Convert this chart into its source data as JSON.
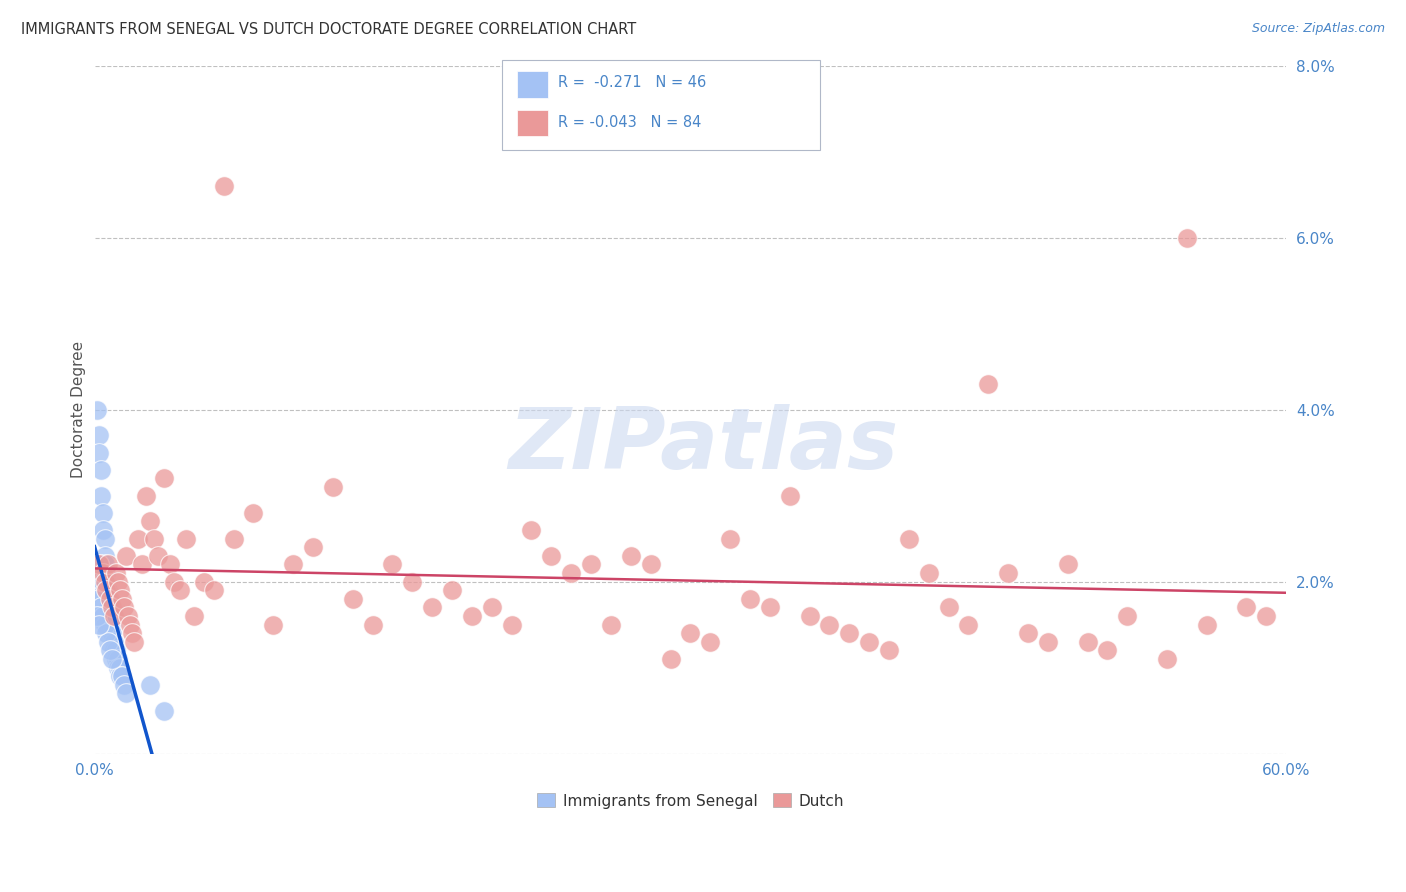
{
  "title": "IMMIGRANTS FROM SENEGAL VS DUTCH DOCTORATE DEGREE CORRELATION CHART",
  "source": "Source: ZipAtlas.com",
  "ylabel": "Doctorate Degree",
  "xlim": [
    0,
    0.6
  ],
  "ylim": [
    0,
    0.08
  ],
  "xtick_positions": [
    0.0,
    0.6
  ],
  "xtick_labels": [
    "0.0%",
    "60.0%"
  ],
  "ytick_positions": [
    0.0,
    0.02,
    0.04,
    0.06,
    0.08
  ],
  "ytick_labels": [
    "",
    "2.0%",
    "4.0%",
    "6.0%",
    "8.0%"
  ],
  "legend1_R": "-0.271",
  "legend1_N": "46",
  "legend2_R": "-0.043",
  "legend2_N": "84",
  "blue_color": "#a4c2f4",
  "pink_color": "#ea9999",
  "blue_line_color": "#1155cc",
  "pink_line_color": "#cc4466",
  "dashed_color": "#aaaacc",
  "background_color": "#ffffff",
  "grid_color": "#c0c0c0",
  "title_color": "#333333",
  "ylabel_color": "#555555",
  "tick_color": "#4a86c8",
  "source_color": "#4a86c8",
  "watermark_color": "#ccd9f0",
  "blue_x": [
    0.001,
    0.002,
    0.002,
    0.003,
    0.003,
    0.004,
    0.004,
    0.005,
    0.005,
    0.005,
    0.006,
    0.006,
    0.007,
    0.007,
    0.007,
    0.008,
    0.008,
    0.009,
    0.009,
    0.01,
    0.01,
    0.011,
    0.011,
    0.012,
    0.012,
    0.013,
    0.013,
    0.014,
    0.015,
    0.016,
    0.001,
    0.002,
    0.003,
    0.004,
    0.005,
    0.006,
    0.007,
    0.008,
    0.009,
    0.002,
    0.003,
    0.004,
    0.001,
    0.002,
    0.028,
    0.035
  ],
  "blue_y": [
    0.04,
    0.037,
    0.035,
    0.033,
    0.03,
    0.028,
    0.026,
    0.025,
    0.023,
    0.022,
    0.021,
    0.02,
    0.019,
    0.018,
    0.017,
    0.016,
    0.015,
    0.015,
    0.014,
    0.013,
    0.012,
    0.012,
    0.011,
    0.011,
    0.01,
    0.01,
    0.009,
    0.009,
    0.008,
    0.007,
    0.019,
    0.018,
    0.017,
    0.016,
    0.015,
    0.014,
    0.013,
    0.012,
    0.011,
    0.022,
    0.021,
    0.02,
    0.016,
    0.015,
    0.008,
    0.005
  ],
  "pink_x": [
    0.002,
    0.004,
    0.005,
    0.006,
    0.007,
    0.008,
    0.009,
    0.01,
    0.011,
    0.012,
    0.013,
    0.014,
    0.015,
    0.016,
    0.017,
    0.018,
    0.019,
    0.02,
    0.022,
    0.024,
    0.026,
    0.028,
    0.03,
    0.032,
    0.035,
    0.038,
    0.04,
    0.043,
    0.046,
    0.05,
    0.055,
    0.06,
    0.065,
    0.07,
    0.08,
    0.09,
    0.1,
    0.11,
    0.12,
    0.13,
    0.14,
    0.15,
    0.16,
    0.17,
    0.18,
    0.19,
    0.2,
    0.21,
    0.22,
    0.23,
    0.24,
    0.25,
    0.26,
    0.27,
    0.28,
    0.29,
    0.3,
    0.31,
    0.32,
    0.33,
    0.34,
    0.35,
    0.36,
    0.37,
    0.38,
    0.39,
    0.4,
    0.41,
    0.42,
    0.43,
    0.44,
    0.45,
    0.46,
    0.47,
    0.48,
    0.49,
    0.5,
    0.51,
    0.52,
    0.54,
    0.55,
    0.56,
    0.58,
    0.59
  ],
  "pink_y": [
    0.022,
    0.021,
    0.02,
    0.019,
    0.022,
    0.018,
    0.017,
    0.016,
    0.021,
    0.02,
    0.019,
    0.018,
    0.017,
    0.023,
    0.016,
    0.015,
    0.014,
    0.013,
    0.025,
    0.022,
    0.03,
    0.027,
    0.025,
    0.023,
    0.032,
    0.022,
    0.02,
    0.019,
    0.025,
    0.016,
    0.02,
    0.019,
    0.066,
    0.025,
    0.028,
    0.015,
    0.022,
    0.024,
    0.031,
    0.018,
    0.015,
    0.022,
    0.02,
    0.017,
    0.019,
    0.016,
    0.017,
    0.015,
    0.026,
    0.023,
    0.021,
    0.022,
    0.015,
    0.023,
    0.022,
    0.011,
    0.014,
    0.013,
    0.025,
    0.018,
    0.017,
    0.03,
    0.016,
    0.015,
    0.014,
    0.013,
    0.012,
    0.025,
    0.021,
    0.017,
    0.015,
    0.043,
    0.021,
    0.014,
    0.013,
    0.022,
    0.013,
    0.012,
    0.016,
    0.011,
    0.06,
    0.015,
    0.017,
    0.016
  ]
}
